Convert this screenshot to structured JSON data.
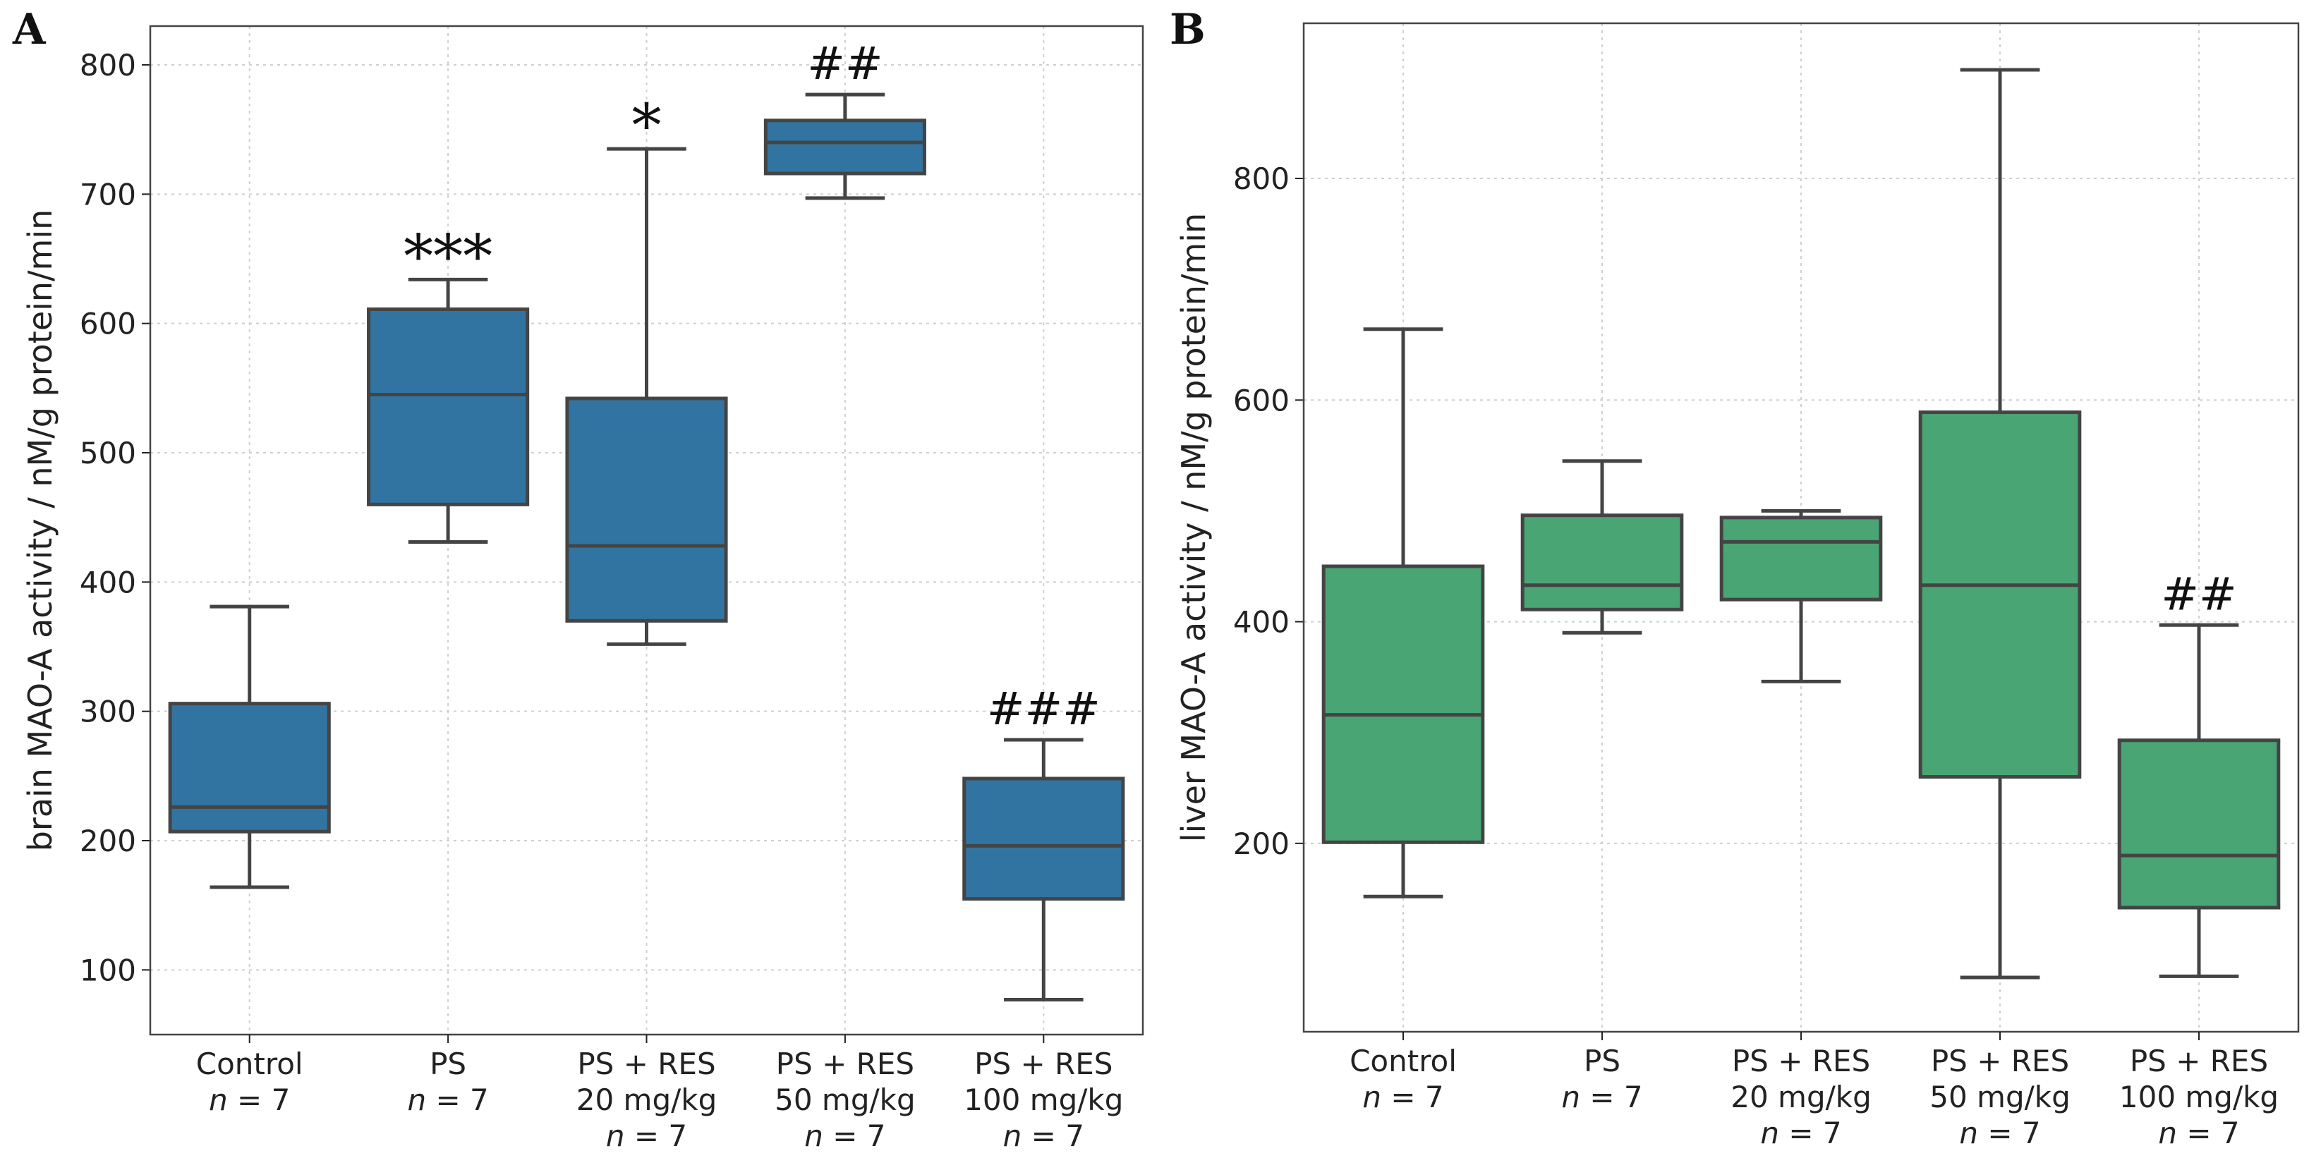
{
  "chart_data": [
    {
      "panel": "A",
      "type": "box",
      "ylabel": "brain MAO-A activity / nM/g protein/min",
      "ylim": [
        50,
        830
      ],
      "yticks": [
        100,
        200,
        300,
        400,
        500,
        600,
        700,
        800
      ],
      "grid": true,
      "color": "#3274a1",
      "categories": [
        [
          "Control",
          "n = 7"
        ],
        [
          "PS",
          "n = 7"
        ],
        [
          "PS + RES",
          "20 mg/kg",
          "n = 7"
        ],
        [
          "PS + RES",
          "50 mg/kg",
          "n = 7"
        ],
        [
          "PS + RES",
          "100 mg/kg",
          "n = 7"
        ]
      ],
      "boxes": [
        {
          "whisker_low": 164,
          "q1": 207,
          "median": 226,
          "q3": 306,
          "whisker_high": 381
        },
        {
          "whisker_low": 431,
          "q1": 460,
          "median": 545,
          "q3": 611,
          "whisker_high": 634
        },
        {
          "whisker_low": 352,
          "q1": 370,
          "median": 428,
          "q3": 542,
          "whisker_high": 735
        },
        {
          "whisker_low": 697,
          "q1": 716,
          "median": 740,
          "q3": 757,
          "whisker_high": 777
        },
        {
          "whisker_low": 77,
          "q1": 155,
          "median": 196,
          "q3": 248,
          "whisker_high": 278
        }
      ],
      "annotations": [
        "",
        "***",
        "*",
        "##",
        "###"
      ]
    },
    {
      "panel": "B",
      "type": "box",
      "ylabel": "liver MAO-A activity / nM/g protein/min",
      "ylim": [
        30,
        940
      ],
      "yticks": [
        200,
        400,
        600,
        800
      ],
      "grid": true,
      "color": "#4aa574",
      "categories": [
        [
          "Control",
          "n = 7"
        ],
        [
          "PS",
          "n = 7"
        ],
        [
          "PS + RES",
          "20 mg/kg",
          "n = 7"
        ],
        [
          "PS + RES",
          "50 mg/kg",
          "n = 7"
        ],
        [
          "PS + RES",
          "100 mg/kg",
          "n = 7"
        ]
      ],
      "boxes": [
        {
          "whisker_low": 152,
          "q1": 201,
          "median": 316,
          "q3": 450,
          "whisker_high": 664
        },
        {
          "whisker_low": 390,
          "q1": 411,
          "median": 433,
          "q3": 496,
          "whisker_high": 545
        },
        {
          "whisker_low": 346,
          "q1": 420,
          "median": 472,
          "q3": 494,
          "whisker_high": 500
        },
        {
          "whisker_low": 79,
          "q1": 260,
          "median": 433,
          "q3": 589,
          "whisker_high": 898
        },
        {
          "whisker_low": 80,
          "q1": 142,
          "median": 189,
          "q3": 293,
          "whisker_high": 397
        }
      ],
      "annotations": [
        "",
        "",
        "",
        "",
        "##"
      ]
    }
  ]
}
